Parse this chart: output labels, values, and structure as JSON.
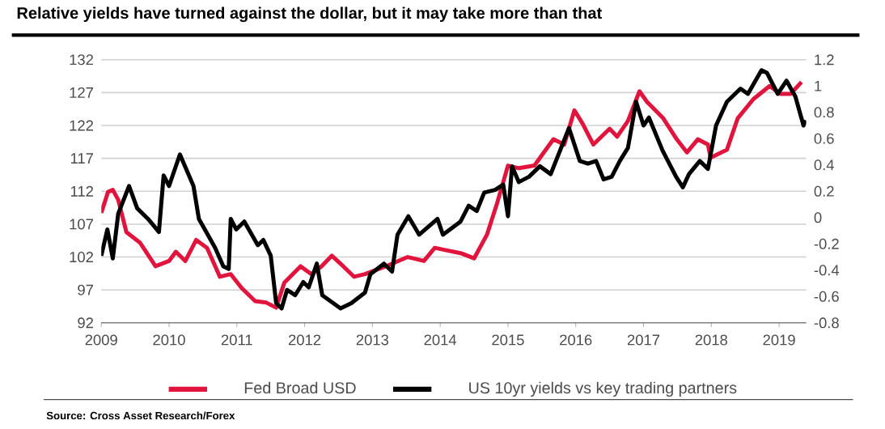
{
  "chart_data": {
    "type": "line",
    "title": "Relative yields have turned against the dollar, but it may take more than that",
    "annotations": [
      "Source: Cross Asset Research/Forex"
    ],
    "xlim": [
      2009,
      2019.4
    ],
    "xticks": [
      2009,
      2010,
      2011,
      2012,
      2013,
      2014,
      2015,
      2016,
      2017,
      2018,
      2019
    ],
    "ylim": [
      92,
      132
    ],
    "yticks": [
      92,
      97,
      102,
      107,
      112,
      117,
      122,
      127,
      132
    ],
    "y2lim": [
      -0.8,
      1.2
    ],
    "y2ticks": [
      -0.8,
      -0.6,
      -0.4,
      -0.2,
      0,
      0.2,
      0.4,
      0.6,
      0.8,
      1,
      1.2
    ],
    "grid": "y",
    "legend": "bottom",
    "series": [
      {
        "name": "Fed Broad USD",
        "color": "#e0143c",
        "x": [
          2009.0,
          2009.1,
          2009.17,
          2009.25,
          2009.37,
          2009.57,
          2009.8,
          2010.0,
          2010.1,
          2010.24,
          2010.4,
          2010.56,
          2010.75,
          2010.91,
          2011.07,
          2011.27,
          2011.43,
          2011.58,
          2011.7,
          2011.94,
          2012.1,
          2012.25,
          2012.4,
          2012.57,
          2012.73,
          2012.89,
          2013.2,
          2013.52,
          2013.76,
          2013.92,
          2014.1,
          2014.3,
          2014.5,
          2014.69,
          2014.84,
          2015.0,
          2015.16,
          2015.39,
          2015.67,
          2015.83,
          2015.98,
          2016.1,
          2016.26,
          2016.5,
          2016.61,
          2016.77,
          2016.94,
          2017.05,
          2017.29,
          2017.49,
          2017.64,
          2017.8,
          2017.95,
          2017.99,
          2018.23,
          2018.39,
          2018.62,
          2018.86,
          2019.02,
          2019.17,
          2019.33
        ],
        "values": [
          108.7,
          111.9,
          112.2,
          110.7,
          105.8,
          104.2,
          100.6,
          101.4,
          102.8,
          101.4,
          104.6,
          103.4,
          99.0,
          99.4,
          97.3,
          95.3,
          95.1,
          94.3,
          98.1,
          100.6,
          99.4,
          100.6,
          102.2,
          100.6,
          99.0,
          99.4,
          100.6,
          102.0,
          101.4,
          103.4,
          103.0,
          102.6,
          101.8,
          105.4,
          110.2,
          115.9,
          115.5,
          115.9,
          119.9,
          119.1,
          124.3,
          122.3,
          119.1,
          121.5,
          120.3,
          122.7,
          127.2,
          125.6,
          123.1,
          119.9,
          117.9,
          119.9,
          119.1,
          117.1,
          118.3,
          123.1,
          126.0,
          128.0,
          126.8,
          126.8,
          128.6
        ]
      },
      {
        "name": "US 10yr yields vs key trading partners",
        "color": "#000000",
        "axis": "y2",
        "x": [
          2009.0,
          2009.09,
          2009.17,
          2009.25,
          2009.41,
          2009.53,
          2009.69,
          2009.85,
          2009.92,
          2010.0,
          2010.16,
          2010.36,
          2010.44,
          2010.68,
          2010.8,
          2010.88,
          2010.91,
          2010.99,
          2011.11,
          2011.31,
          2011.39,
          2011.5,
          2011.58,
          2011.66,
          2011.74,
          2011.86,
          2011.98,
          2012.06,
          2012.18,
          2012.26,
          2012.53,
          2012.69,
          2012.89,
          2012.97,
          2013.17,
          2013.29,
          2013.37,
          2013.53,
          2013.69,
          2013.96,
          2014.04,
          2014.3,
          2014.42,
          2014.54,
          2014.65,
          2014.81,
          2014.93,
          2015.0,
          2015.06,
          2015.16,
          2015.31,
          2015.47,
          2015.63,
          2015.9,
          2016.06,
          2016.18,
          2016.3,
          2016.41,
          2016.53,
          2016.65,
          2016.77,
          2016.89,
          2017.0,
          2017.08,
          2017.28,
          2017.48,
          2017.58,
          2017.67,
          2017.83,
          2017.95,
          2018.07,
          2018.23,
          2018.43,
          2018.54,
          2018.74,
          2018.82,
          2018.98,
          2019.11,
          2019.24,
          2019.36,
          2019.39
        ],
        "values": [
          -0.29,
          -0.09,
          -0.31,
          0.03,
          0.24,
          0.07,
          -0.01,
          -0.11,
          0.32,
          0.24,
          0.48,
          0.24,
          -0.01,
          -0.23,
          -0.37,
          -0.39,
          -0.01,
          -0.09,
          -0.03,
          -0.21,
          -0.17,
          -0.29,
          -0.65,
          -0.69,
          -0.55,
          -0.59,
          -0.49,
          -0.53,
          -0.35,
          -0.59,
          -0.69,
          -0.65,
          -0.57,
          -0.43,
          -0.35,
          -0.41,
          -0.13,
          0.01,
          -0.13,
          -0.01,
          -0.13,
          -0.03,
          0.09,
          0.05,
          0.19,
          0.21,
          0.25,
          0.01,
          0.39,
          0.27,
          0.31,
          0.39,
          0.33,
          0.68,
          0.43,
          0.41,
          0.43,
          0.29,
          0.31,
          0.43,
          0.53,
          0.88,
          0.7,
          0.76,
          0.51,
          0.31,
          0.23,
          0.33,
          0.43,
          0.37,
          0.7,
          0.88,
          0.98,
          0.94,
          1.12,
          1.1,
          0.94,
          1.04,
          0.92,
          0.7,
          0.74
        ]
      }
    ]
  }
}
